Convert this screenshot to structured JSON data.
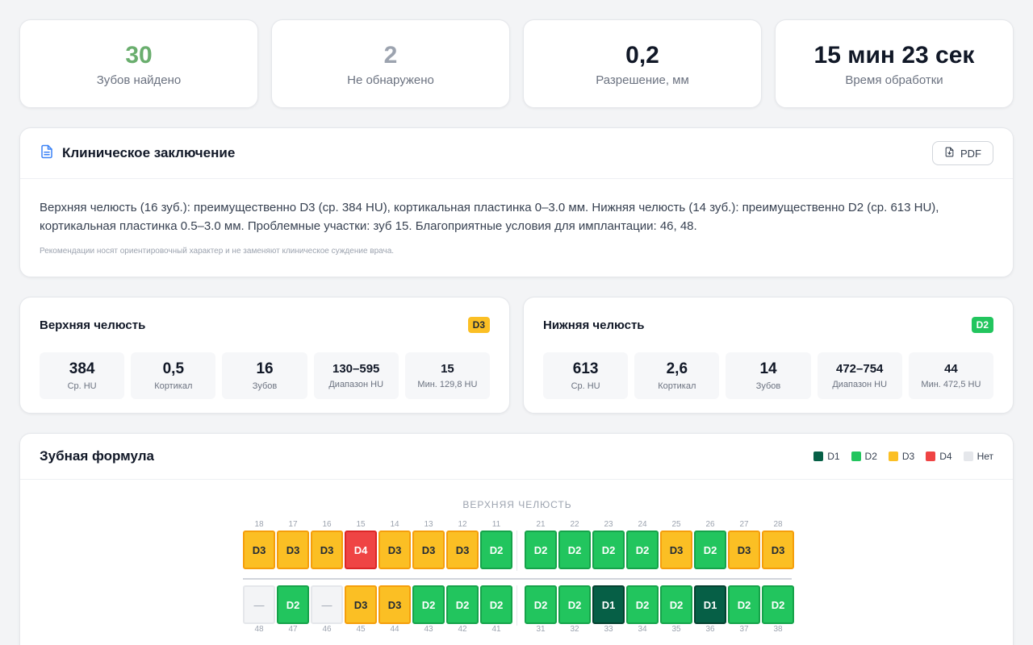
{
  "stats": [
    {
      "value": "30",
      "label": "Зубов найдено",
      "color": "#6aae6e"
    },
    {
      "value": "2",
      "label": "Не обнаружено",
      "color": "#9ca3af"
    },
    {
      "value": "0,2",
      "label": "Разрешение, мм",
      "color": "#111827"
    },
    {
      "value": "15 мин 23 сек",
      "label": "Время обработки",
      "color": "#111827"
    }
  ],
  "conclusion": {
    "title": "Клиническое заключение",
    "pdf_label": "PDF",
    "text": "Верхняя челюсть (16 зуб.): преимущественно D3 (ср. 384 HU), кортикальная пластинка 0–3.0 мм. Нижняя челюсть (14 зуб.): преимущественно D2 (ср. 613 HU), кортикальная пластинка 0.5–3.0 мм. Проблемные участки: зуб 15. Благоприятные условия для имплантации: 46, 48.",
    "note": "Рекомендации носят ориентировочный характер и не заменяют клиническое суждение врача."
  },
  "upper": {
    "title": "Верхняя челюсть",
    "badge": "D3",
    "badge_color": "#fbbf24",
    "stats": [
      {
        "value": "384",
        "label": "Ср. HU"
      },
      {
        "value": "0,5",
        "label": "Кортикал"
      },
      {
        "value": "16",
        "label": "Зубов"
      },
      {
        "value": "130–595",
        "label": "Диапазон HU"
      },
      {
        "value": "15",
        "label": "Мин. 129,8 HU"
      }
    ]
  },
  "lower": {
    "title": "Нижняя челюсть",
    "badge": "D2",
    "badge_color": "#22c55e",
    "stats": [
      {
        "value": "613",
        "label": "Ср. HU"
      },
      {
        "value": "2,6",
        "label": "Кортикал"
      },
      {
        "value": "14",
        "label": "Зубов"
      },
      {
        "value": "472–754",
        "label": "Диапазон HU"
      },
      {
        "value": "44",
        "label": "Мин. 472,5 HU"
      }
    ]
  },
  "formula": {
    "title": "Зубная формула",
    "legend": [
      {
        "label": "D1",
        "color": "#065f46"
      },
      {
        "label": "D2",
        "color": "#22c55e"
      },
      {
        "label": "D3",
        "color": "#fbbf24"
      },
      {
        "label": "D4",
        "color": "#ef4444"
      },
      {
        "label": "Нет",
        "color": "#e5e7eb"
      }
    ],
    "upper_caption": "ВЕРХНЯЯ ЧЕЛЮСТЬ",
    "upper_teeth": [
      {
        "n": "18",
        "d": "D3"
      },
      {
        "n": "17",
        "d": "D3"
      },
      {
        "n": "16",
        "d": "D3"
      },
      {
        "n": "15",
        "d": "D4"
      },
      {
        "n": "14",
        "d": "D3"
      },
      {
        "n": "13",
        "d": "D3"
      },
      {
        "n": "12",
        "d": "D3"
      },
      {
        "n": "11",
        "d": "D2"
      },
      {
        "n": "21",
        "d": "D2"
      },
      {
        "n": "22",
        "d": "D2"
      },
      {
        "n": "23",
        "d": "D2"
      },
      {
        "n": "24",
        "d": "D2"
      },
      {
        "n": "25",
        "d": "D3"
      },
      {
        "n": "26",
        "d": "D2"
      },
      {
        "n": "27",
        "d": "D3"
      },
      {
        "n": "28",
        "d": "D3"
      }
    ],
    "lower_teeth": [
      {
        "n": "48",
        "d": "—"
      },
      {
        "n": "47",
        "d": "D2"
      },
      {
        "n": "46",
        "d": "—"
      },
      {
        "n": "45",
        "d": "D3"
      },
      {
        "n": "44",
        "d": "D3"
      },
      {
        "n": "43",
        "d": "D2"
      },
      {
        "n": "42",
        "d": "D2"
      },
      {
        "n": "41",
        "d": "D2"
      },
      {
        "n": "31",
        "d": "D2"
      },
      {
        "n": "32",
        "d": "D2"
      },
      {
        "n": "33",
        "d": "D1"
      },
      {
        "n": "34",
        "d": "D2"
      },
      {
        "n": "35",
        "d": "D2"
      },
      {
        "n": "36",
        "d": "D1"
      },
      {
        "n": "37",
        "d": "D2"
      },
      {
        "n": "38",
        "d": "D2"
      }
    ]
  }
}
